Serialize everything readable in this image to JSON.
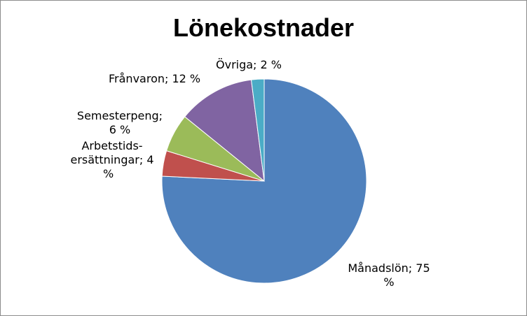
{
  "chart_data": {
    "type": "pie",
    "title": "Lönekostnader",
    "start_angle_deg": -90,
    "slices": [
      {
        "name": "Månadslön",
        "value": 75,
        "display": "75 %",
        "color": "#4f81bd"
      },
      {
        "name": "Arbetstids-ersättningar",
        "value": 4,
        "display": "4 %",
        "color": "#c0504d"
      },
      {
        "name": "Semesterpeng",
        "value": 6,
        "display": "6 %",
        "color": "#9bbb59"
      },
      {
        "name": "Frånvaron",
        "value": 12,
        "display": "12 %",
        "color": "#8064a2"
      },
      {
        "name": "Övriga",
        "value": 2,
        "display": "2 %",
        "color": "#4bacc6"
      }
    ],
    "labels": [
      {
        "line1": "Månadslön; 75",
        "line2": "%"
      },
      {
        "line1": "Arbetstids-",
        "line2": "ersättningar; 4",
        "line3": "%"
      },
      {
        "line1": "Semesterpeng;",
        "line2": "6 %"
      },
      {
        "line1": "Frånvaron; 12 %"
      },
      {
        "line1": "Övriga; 2 %"
      }
    ]
  }
}
